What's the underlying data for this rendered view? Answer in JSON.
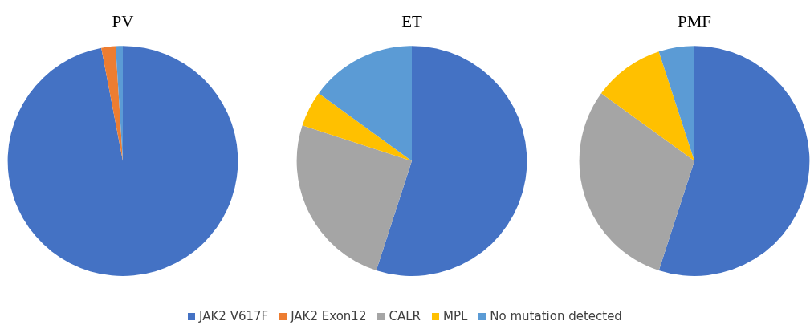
{
  "chart_data": [
    {
      "type": "pie",
      "title": "PV",
      "categories": [
        "JAK2 V617F",
        "JAK2 Exon12",
        "CALR",
        "MPL",
        "No mutation detected"
      ],
      "values": [
        97,
        2,
        0,
        0,
        1
      ],
      "colors": [
        "#4472c4",
        "#ed7d31",
        "#a5a5a5",
        "#ffc000",
        "#5b9bd5"
      ],
      "legend": "bottom"
    },
    {
      "type": "pie",
      "title": "ET",
      "categories": [
        null,
        null,
        null,
        null,
        null
      ],
      "values": [
        55,
        0,
        25,
        5,
        15
      ],
      "colors": [
        "#4472c4",
        "#ed7d31",
        "#a5a5a5",
        "#ffc000",
        "#5b9bd5"
      ]
    },
    {
      "type": "pie",
      "title": "PMF",
      "categories": [
        null,
        null,
        null,
        null,
        null
      ],
      "values": [
        55,
        0,
        30,
        10,
        5
      ],
      "colors": [
        "#4472c4",
        "#ed7d31",
        "#a5a5a5",
        "#ffc000",
        "#5b9bd5"
      ]
    }
  ]
}
